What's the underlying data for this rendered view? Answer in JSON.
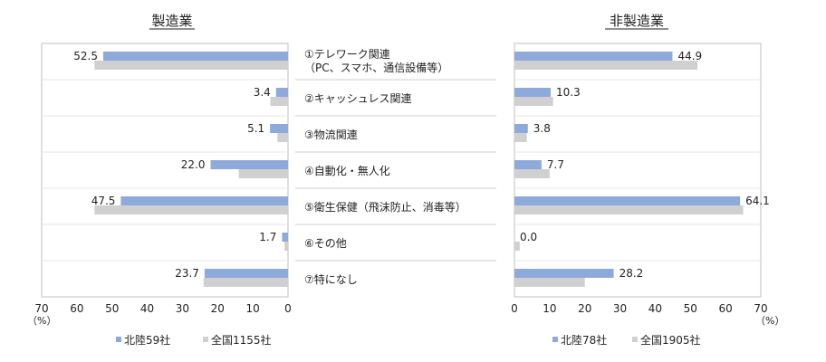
{
  "chart_data": [
    {
      "type": "bar",
      "orientation": "horizontal",
      "direction": "right-to-left",
      "title": "製造業",
      "categories": [
        [
          "①テレワーク関連",
          "（PC、スマホ、通信設備等）"
        ],
        [
          "②キャッシュレス関連"
        ],
        [
          "③物流関連"
        ],
        [
          "④自動化・無人化"
        ],
        [
          "⑤衛生保健（飛沫防止、消毒等）"
        ],
        [
          "⑥その他"
        ],
        [
          "⑦特になし"
        ]
      ],
      "series": [
        {
          "name": "北陸59社",
          "values": [
            52.5,
            3.4,
            5.1,
            22.0,
            47.5,
            1.7,
            23.7
          ],
          "labels": [
            "52.5",
            "3.4",
            "5.1",
            "22.0",
            "47.5",
            "1.7",
            "23.7"
          ],
          "color": "#8eaadb"
        },
        {
          "name": "全国1155社",
          "values": [
            55,
            5,
            3,
            14,
            55,
            1,
            24
          ],
          "color": "#d0d0d0"
        }
      ],
      "xlim": [
        0,
        70
      ],
      "ticks": [
        "70",
        "60",
        "50",
        "40",
        "30",
        "20",
        "10",
        "0"
      ],
      "unit": "（%）",
      "legend": "bottom"
    },
    {
      "type": "bar",
      "orientation": "horizontal",
      "direction": "left-to-right",
      "title": "非製造業",
      "categories": [
        [
          "①テレワーク関連",
          "（PC、スマホ、通信設備等）"
        ],
        [
          "②キャッシュレス関連"
        ],
        [
          "③物流関連"
        ],
        [
          "④自動化・無人化"
        ],
        [
          "⑤衛生保健（飛沫防止、消毒等）"
        ],
        [
          "⑥その他"
        ],
        [
          "⑦特になし"
        ]
      ],
      "series": [
        {
          "name": "北陸78社",
          "values": [
            44.9,
            10.3,
            3.8,
            7.7,
            64.1,
            0.0,
            28.2
          ],
          "labels": [
            "44.9",
            "10.3",
            "3.8",
            "7.7",
            "64.1",
            "0.0",
            "28.2"
          ],
          "color": "#8eaadb"
        },
        {
          "name": "全国1905社",
          "values": [
            52,
            11,
            3.5,
            10,
            65,
            1.5,
            20
          ],
          "color": "#d0d0d0"
        }
      ],
      "xlim": [
        0,
        70
      ],
      "ticks": [
        "0",
        "10",
        "20",
        "30",
        "40",
        "50",
        "60",
        "70"
      ],
      "unit": "（%）",
      "legend": "bottom"
    }
  ],
  "colors": {
    "hokuriku": "#8eaadb",
    "national": "#d0d0d0",
    "frame": "#bfbfbf"
  }
}
